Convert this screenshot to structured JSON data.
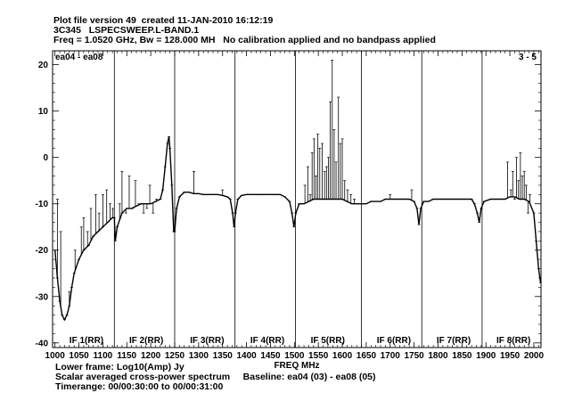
{
  "header": {
    "line1": "Plot file version 49  created 11-JAN-2010 16:12:19",
    "line2": "3C345   LSPECSWEEP.L-BAND.1",
    "line3": "Freq = 1.0520 GHz, Bw = 128.000 MH   No calibration applied and no bandpass applied"
  },
  "footer": {
    "line1": "Lower frame: Log10(Amp) Jy",
    "line2": "Scalar averaged cross-power spectrum     Baseline: ea04 (03) - ea08 (05)",
    "line3": "Timerange: 00/00:30:00 to 00/00:31:00"
  },
  "chart_data": {
    "type": "line",
    "title": "",
    "xlabel": "FREQ MHz",
    "ylabel": "",
    "xlim": [
      995,
      2015
    ],
    "ylim": [
      -41,
      23
    ],
    "xticks": [
      1000,
      1050,
      1100,
      1150,
      1200,
      1250,
      1300,
      1350,
      1400,
      1450,
      1500,
      1550,
      1600,
      1650,
      1700,
      1750,
      1800,
      1850,
      1900,
      1950,
      2000
    ],
    "yticks": [
      20,
      10,
      0,
      -10,
      -20,
      -30,
      -40
    ],
    "baseline_label": "ea04 - ea08",
    "panel_label": "3 - 5",
    "if_boundaries": [
      1124,
      1250,
      1376,
      1502,
      1640,
      1766,
      1892
    ],
    "if_labels": [
      {
        "label": "IF 1(RR)",
        "x": 1030
      },
      {
        "label": "IF 2(RR)",
        "x": 1155
      },
      {
        "label": "IF 3(RR)",
        "x": 1282
      },
      {
        "label": "IF 4(RR)",
        "x": 1408
      },
      {
        "label": "IF 5(RR)",
        "x": 1534
      },
      {
        "label": "IF 6(RR)",
        "x": 1672
      },
      {
        "label": "IF 7(RR)",
        "x": 1797
      },
      {
        "label": "IF 8(RR)",
        "x": 1922
      }
    ],
    "series": [
      {
        "points": [
          [
            1000,
            -20
          ],
          [
            1005,
            -26
          ],
          [
            1010,
            -31
          ],
          [
            1015,
            -34
          ],
          [
            1020,
            -35
          ],
          [
            1025,
            -34
          ],
          [
            1030,
            -32
          ],
          [
            1035,
            -28
          ],
          [
            1040,
            -25
          ],
          [
            1050,
            -22
          ],
          [
            1060,
            -20
          ],
          [
            1070,
            -19
          ],
          [
            1080,
            -17
          ],
          [
            1090,
            -16
          ],
          [
            1100,
            -15
          ],
          [
            1110,
            -14
          ],
          [
            1120,
            -13
          ],
          [
            1124,
            -13
          ],
          [
            1126,
            -18
          ],
          [
            1130,
            -15
          ],
          [
            1140,
            -12
          ],
          [
            1150,
            -11
          ],
          [
            1160,
            -11
          ],
          [
            1170,
            -10.5
          ],
          [
            1180,
            -10
          ],
          [
            1190,
            -10
          ],
          [
            1200,
            -10
          ],
          [
            1210,
            -9.5
          ],
          [
            1220,
            -9
          ],
          [
            1225,
            -7
          ],
          [
            1230,
            -2
          ],
          [
            1235,
            3
          ],
          [
            1238,
            4.5
          ],
          [
            1240,
            2
          ],
          [
            1244,
            -6
          ],
          [
            1248,
            -16
          ],
          [
            1250,
            -16
          ],
          [
            1254,
            -11
          ],
          [
            1260,
            -8.5
          ],
          [
            1270,
            -7.5
          ],
          [
            1280,
            -7.5
          ],
          [
            1290,
            -7.8
          ],
          [
            1300,
            -7.8
          ],
          [
            1310,
            -8
          ],
          [
            1320,
            -8
          ],
          [
            1330,
            -8
          ],
          [
            1340,
            -8
          ],
          [
            1350,
            -8.2
          ],
          [
            1360,
            -8.5
          ],
          [
            1366,
            -9
          ],
          [
            1371,
            -12
          ],
          [
            1374,
            -15
          ],
          [
            1377,
            -12
          ],
          [
            1382,
            -9
          ],
          [
            1390,
            -8.2
          ],
          [
            1400,
            -8
          ],
          [
            1410,
            -8
          ],
          [
            1420,
            -8
          ],
          [
            1430,
            -8
          ],
          [
            1440,
            -8
          ],
          [
            1450,
            -8
          ],
          [
            1460,
            -8
          ],
          [
            1470,
            -8
          ],
          [
            1480,
            -8.5
          ],
          [
            1490,
            -9.5
          ],
          [
            1495,
            -12
          ],
          [
            1499,
            -15
          ],
          [
            1503,
            -12
          ],
          [
            1510,
            -10
          ],
          [
            1520,
            -10
          ],
          [
            1530,
            -9.5
          ],
          [
            1540,
            -9
          ],
          [
            1550,
            -9
          ],
          [
            1560,
            -9
          ],
          [
            1570,
            -9
          ],
          [
            1580,
            -9
          ],
          [
            1590,
            -9
          ],
          [
            1600,
            -9
          ],
          [
            1610,
            -9.5
          ],
          [
            1620,
            -10
          ],
          [
            1630,
            -10
          ],
          [
            1640,
            -10
          ],
          [
            1650,
            -10
          ],
          [
            1660,
            -9.5
          ],
          [
            1670,
            -9.5
          ],
          [
            1680,
            -9.5
          ],
          [
            1690,
            -9
          ],
          [
            1700,
            -9
          ],
          [
            1710,
            -9
          ],
          [
            1720,
            -9
          ],
          [
            1730,
            -9
          ],
          [
            1740,
            -9
          ],
          [
            1750,
            -9.5
          ],
          [
            1756,
            -11
          ],
          [
            1760,
            -14.5
          ],
          [
            1764,
            -11
          ],
          [
            1770,
            -9.5
          ],
          [
            1780,
            -9.5
          ],
          [
            1790,
            -9
          ],
          [
            1800,
            -9
          ],
          [
            1810,
            -9
          ],
          [
            1820,
            -9
          ],
          [
            1830,
            -9
          ],
          [
            1840,
            -9
          ],
          [
            1850,
            -9
          ],
          [
            1860,
            -9
          ],
          [
            1870,
            -9
          ],
          [
            1876,
            -10
          ],
          [
            1882,
            -12
          ],
          [
            1886,
            -14
          ],
          [
            1890,
            -11
          ],
          [
            1896,
            -9.5
          ],
          [
            1910,
            -9
          ],
          [
            1920,
            -9
          ],
          [
            1930,
            -9
          ],
          [
            1940,
            -9
          ],
          [
            1950,
            -8.5
          ],
          [
            1960,
            -8.5
          ],
          [
            1970,
            -9
          ],
          [
            1980,
            -9
          ],
          [
            1990,
            -9.5
          ],
          [
            2000,
            -12
          ],
          [
            2005,
            -18
          ],
          [
            2010,
            -24
          ],
          [
            2014,
            -27
          ]
        ]
      }
    ],
    "spikes": [
      [
        1005,
        -9
      ],
      [
        1012,
        -16
      ],
      [
        1030,
        -29
      ],
      [
        1042,
        -20
      ],
      [
        1055,
        -15
      ],
      [
        1060,
        -13
      ],
      [
        1068,
        -16
      ],
      [
        1075,
        -11
      ],
      [
        1085,
        -8
      ],
      [
        1092,
        -12
      ],
      [
        1100,
        -8
      ],
      [
        1108,
        -7
      ],
      [
        1115,
        -10
      ],
      [
        1121,
        -11
      ],
      [
        1135,
        -10
      ],
      [
        1140,
        -3
      ],
      [
        1148,
        -12
      ],
      [
        1155,
        -4
      ],
      [
        1162,
        -11
      ],
      [
        1168,
        -5
      ],
      [
        1175,
        -10
      ],
      [
        1185,
        -12
      ],
      [
        1192,
        -11
      ],
      [
        1198,
        -6
      ],
      [
        1205,
        -12
      ],
      [
        1212,
        -9
      ],
      [
        1290,
        -3
      ],
      [
        1350,
        -7
      ],
      [
        1522,
        -6
      ],
      [
        1528,
        -2
      ],
      [
        1533,
        -8
      ],
      [
        1537,
        1
      ],
      [
        1541,
        4
      ],
      [
        1545,
        -4
      ],
      [
        1549,
        5
      ],
      [
        1553,
        2
      ],
      [
        1558,
        3
      ],
      [
        1563,
        -3
      ],
      [
        1567,
        -2
      ],
      [
        1571,
        0
      ],
      [
        1575,
        12
      ],
      [
        1579,
        21
      ],
      [
        1583,
        6
      ],
      [
        1587,
        -1
      ],
      [
        1592,
        13
      ],
      [
        1596,
        3
      ],
      [
        1600,
        4
      ],
      [
        1605,
        -5
      ],
      [
        1611,
        -7
      ],
      [
        1618,
        -8
      ],
      [
        1625,
        -9
      ],
      [
        1700,
        -8
      ],
      [
        1745,
        -7
      ],
      [
        1945,
        -1
      ],
      [
        1952,
        -7
      ],
      [
        1956,
        -3
      ],
      [
        1960,
        -9
      ],
      [
        1964,
        0
      ],
      [
        1968,
        -5
      ],
      [
        1972,
        1
      ],
      [
        1976,
        -4
      ],
      [
        1980,
        -3
      ],
      [
        1984,
        -6
      ],
      [
        1988,
        -12
      ],
      [
        1992,
        -8
      ]
    ]
  }
}
